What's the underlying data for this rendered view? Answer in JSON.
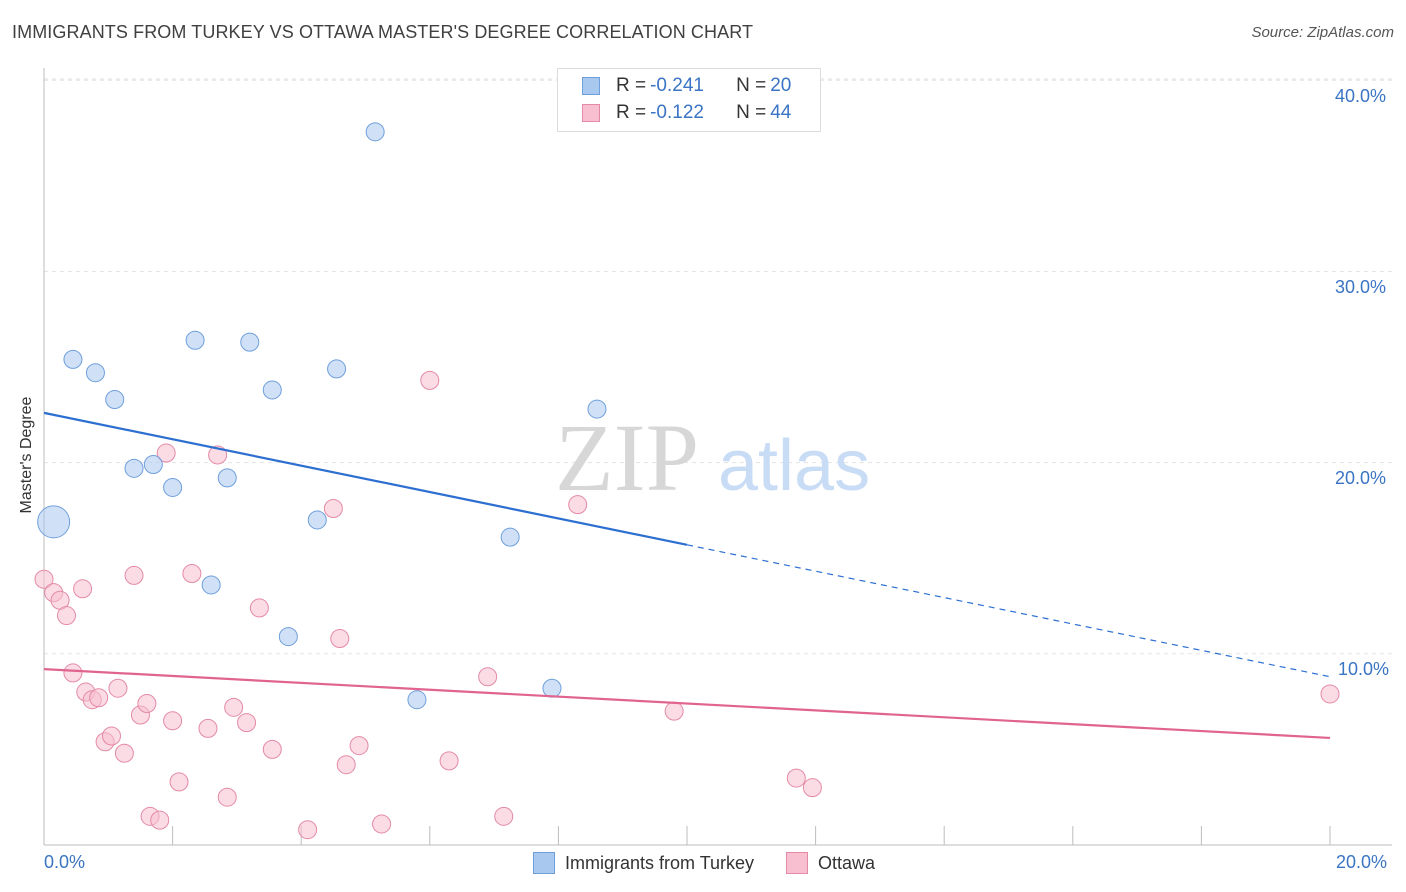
{
  "title": "IMMIGRANTS FROM TURKEY VS OTTAWA MASTER'S DEGREE CORRELATION CHART",
  "source": "Source: ZipAtlas.com",
  "watermark": "ZIPatlas",
  "legend": [
    {
      "r_label": "R = ",
      "r_value": "-0.241",
      "n_label": "N = ",
      "n_value": "20",
      "color": "#a9c8f0",
      "border": "#6f9fdb"
    },
    {
      "r_label": "R = ",
      "r_value": "-0.122",
      "n_label": "N = ",
      "n_value": "44",
      "color": "#f8bfd0",
      "border": "#e48aa7"
    }
  ],
  "x_tick_left": "0.0%",
  "x_tick_right": "20.0%",
  "y_ticks": [
    "40.0%",
    "30.0%",
    "20.0%",
    "10.0%"
  ],
  "chart_data": {
    "type": "scatter",
    "title": "IMMIGRANTS FROM TURKEY VS OTTAWA MASTER'S DEGREE CORRELATION CHART",
    "xlabel": "",
    "ylabel": "Master's Degree",
    "xlim": [
      0,
      20
    ],
    "ylim": [
      0,
      42
    ],
    "grid": true,
    "legend_position": "top-center",
    "series": [
      {
        "name": "Immigrants from Turkey",
        "color": "#a9c8f0",
        "line_color": "#2c6fd1",
        "trend": {
          "x0": 0.0,
          "y0": 22.6,
          "x1": 20.0,
          "y1": 8.8,
          "solid_until": 10.0
        },
        "points": [
          [
            0.15,
            16.9,
            3
          ],
          [
            0.45,
            25.4,
            1
          ],
          [
            0.8,
            24.7,
            1
          ],
          [
            1.1,
            23.3,
            1
          ],
          [
            1.4,
            19.7,
            1
          ],
          [
            1.7,
            19.9,
            1
          ],
          [
            2.0,
            18.7,
            1
          ],
          [
            2.35,
            26.4,
            1
          ],
          [
            2.6,
            13.6,
            1
          ],
          [
            2.85,
            19.2,
            1
          ],
          [
            3.2,
            26.3,
            1
          ],
          [
            3.55,
            23.8,
            1
          ],
          [
            3.8,
            10.9,
            1
          ],
          [
            4.25,
            17.0,
            1
          ],
          [
            4.55,
            24.9,
            1
          ],
          [
            5.15,
            37.3,
            1
          ],
          [
            5.8,
            7.6,
            1
          ],
          [
            7.25,
            16.1,
            1
          ],
          [
            7.9,
            8.2,
            1
          ],
          [
            8.6,
            22.8,
            1
          ]
        ]
      },
      {
        "name": "Ottawa",
        "color": "#f8bfd0",
        "line_color": "#e0648f",
        "trend": {
          "x0": 0.0,
          "y0": 9.2,
          "x1": 20.0,
          "y1": 5.6,
          "solid_until": 20.0
        },
        "points": [
          [
            0.0,
            13.9,
            1
          ],
          [
            0.15,
            13.2,
            1
          ],
          [
            0.25,
            12.8,
            1
          ],
          [
            0.35,
            12.0,
            1
          ],
          [
            0.45,
            9.0,
            1
          ],
          [
            0.6,
            13.4,
            1
          ],
          [
            0.65,
            8.0,
            1
          ],
          [
            0.75,
            7.6,
            1
          ],
          [
            0.85,
            7.7,
            1
          ],
          [
            0.95,
            5.4,
            1
          ],
          [
            1.05,
            5.7,
            1
          ],
          [
            1.15,
            8.2,
            1
          ],
          [
            1.25,
            4.8,
            1
          ],
          [
            1.4,
            14.1,
            1
          ],
          [
            1.5,
            6.8,
            1
          ],
          [
            1.6,
            7.4,
            1
          ],
          [
            1.65,
            1.5,
            1
          ],
          [
            1.8,
            1.3,
            1
          ],
          [
            1.9,
            20.5,
            1
          ],
          [
            2.0,
            6.5,
            1
          ],
          [
            2.1,
            3.3,
            1
          ],
          [
            2.3,
            14.2,
            1
          ],
          [
            2.55,
            6.1,
            1
          ],
          [
            2.7,
            20.4,
            1
          ],
          [
            2.85,
            2.5,
            1
          ],
          [
            2.95,
            7.2,
            1
          ],
          [
            3.15,
            6.4,
            1
          ],
          [
            3.35,
            12.4,
            1
          ],
          [
            3.55,
            5.0,
            1
          ],
          [
            4.1,
            0.8,
            1
          ],
          [
            4.5,
            17.6,
            1
          ],
          [
            4.6,
            10.8,
            1
          ],
          [
            4.7,
            4.2,
            1
          ],
          [
            4.9,
            5.2,
            1
          ],
          [
            5.25,
            1.1,
            1
          ],
          [
            6.0,
            24.3,
            1
          ],
          [
            6.3,
            4.4,
            1
          ],
          [
            6.9,
            8.8,
            1
          ],
          [
            7.15,
            1.5,
            1
          ],
          [
            8.3,
            17.8,
            1
          ],
          [
            9.8,
            7.0,
            1
          ],
          [
            11.7,
            3.5,
            1
          ],
          [
            11.95,
            3.0,
            1
          ],
          [
            20.0,
            7.9,
            1
          ]
        ]
      }
    ]
  }
}
